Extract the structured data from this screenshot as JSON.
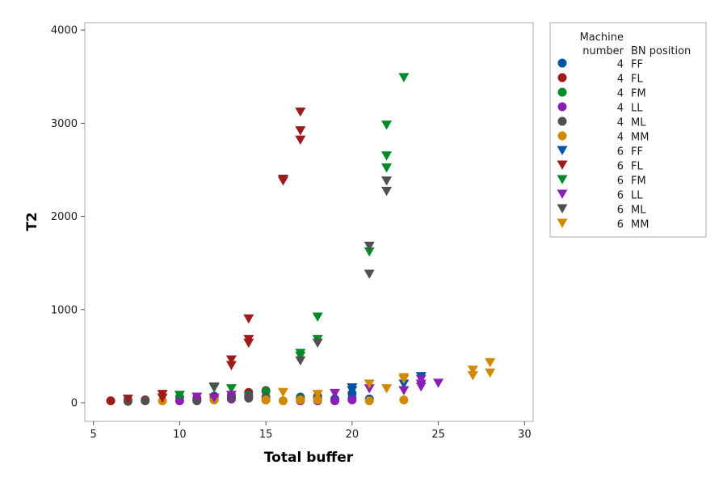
{
  "chart_data": {
    "type": "scatter",
    "xlabel": "Total buffer",
    "ylabel": "T2",
    "xlim": [
      4.5,
      30.5
    ],
    "ylim": [
      -200,
      4080
    ],
    "xticks": [
      5,
      10,
      15,
      20,
      25,
      30
    ],
    "yticks": [
      0,
      1000,
      2000,
      3000,
      4000
    ],
    "grid": false,
    "legend_position": "right",
    "legend_headers": {
      "col1": "Machine",
      "col1b": "number",
      "col2": "BN position"
    },
    "series": [
      {
        "machine": "4",
        "position": "FF",
        "color": "#0054A6",
        "marker": "circle",
        "points": [
          [
            12,
            70
          ],
          [
            13,
            50
          ],
          [
            17,
            60
          ],
          [
            18,
            50
          ],
          [
            19,
            40
          ],
          [
            20,
            50
          ],
          [
            20,
            100
          ],
          [
            21,
            40
          ]
        ]
      },
      {
        "machine": "4",
        "position": "FL",
        "color": "#9E1B1B",
        "marker": "circle",
        "points": [
          [
            6,
            20
          ],
          [
            7,
            30
          ],
          [
            8,
            30
          ],
          [
            11,
            50
          ],
          [
            12,
            60
          ],
          [
            13,
            80
          ],
          [
            14,
            110
          ],
          [
            15,
            130
          ]
        ]
      },
      {
        "machine": "4",
        "position": "FM",
        "color": "#008A29",
        "marker": "circle",
        "points": [
          [
            10,
            60
          ],
          [
            11,
            30
          ],
          [
            12,
            40
          ],
          [
            13,
            60
          ],
          [
            14,
            80
          ],
          [
            15,
            120
          ],
          [
            17,
            50
          ],
          [
            18,
            60
          ]
        ]
      },
      {
        "machine": "4",
        "position": "LL",
        "color": "#8B1FB5",
        "marker": "circle",
        "points": [
          [
            10,
            20
          ],
          [
            11,
            30
          ],
          [
            12,
            30
          ],
          [
            13,
            40
          ],
          [
            14,
            60
          ],
          [
            15,
            30
          ],
          [
            17,
            20
          ],
          [
            18,
            20
          ],
          [
            19,
            20
          ],
          [
            20,
            30
          ]
        ]
      },
      {
        "machine": "4",
        "position": "ML",
        "color": "#505050",
        "marker": "circle",
        "points": [
          [
            7,
            15
          ],
          [
            8,
            20
          ],
          [
            11,
            20
          ],
          [
            12,
            40
          ],
          [
            13,
            60
          ],
          [
            14,
            50
          ],
          [
            15,
            60
          ],
          [
            17,
            40
          ],
          [
            18,
            70
          ]
        ]
      },
      {
        "machine": "4",
        "position": "MM",
        "color": "#D08A00",
        "marker": "circle",
        "points": [
          [
            9,
            20
          ],
          [
            12,
            30
          ],
          [
            15,
            30
          ],
          [
            16,
            20
          ],
          [
            17,
            30
          ],
          [
            18,
            30
          ],
          [
            21,
            20
          ],
          [
            23,
            30
          ]
        ]
      },
      {
        "machine": "6",
        "position": "FF",
        "color": "#0054A6",
        "marker": "triangle-down",
        "points": [
          [
            20,
            160
          ],
          [
            20,
            130
          ],
          [
            23,
            200
          ],
          [
            24,
            280
          ]
        ]
      },
      {
        "machine": "6",
        "position": "FL",
        "color": "#9E1B1B",
        "marker": "triangle-down",
        "points": [
          [
            7,
            40
          ],
          [
            9,
            90
          ],
          [
            9,
            50
          ],
          [
            13,
            460
          ],
          [
            13,
            400
          ],
          [
            14,
            900
          ],
          [
            14,
            680
          ],
          [
            14,
            640
          ],
          [
            16,
            2400
          ],
          [
            16,
            2380
          ],
          [
            17,
            3120
          ],
          [
            17,
            2920
          ],
          [
            17,
            2820
          ]
        ]
      },
      {
        "machine": "6",
        "position": "FM",
        "color": "#008A29",
        "marker": "triangle-down",
        "points": [
          [
            10,
            80
          ],
          [
            12,
            160
          ],
          [
            13,
            150
          ],
          [
            17,
            530
          ],
          [
            17,
            500
          ],
          [
            18,
            920
          ],
          [
            18,
            680
          ],
          [
            21,
            1620
          ],
          [
            22,
            2980
          ],
          [
            22,
            2650
          ],
          [
            22,
            2520
          ],
          [
            23,
            3490
          ]
        ]
      },
      {
        "machine": "6",
        "position": "LL",
        "color": "#8B1FB5",
        "marker": "triangle-down",
        "points": [
          [
            11,
            60
          ],
          [
            12,
            50
          ],
          [
            13,
            80
          ],
          [
            19,
            100
          ],
          [
            21,
            150
          ],
          [
            23,
            130
          ],
          [
            24,
            250
          ],
          [
            24,
            200
          ],
          [
            24,
            170
          ],
          [
            25,
            210
          ]
        ]
      },
      {
        "machine": "6",
        "position": "ML",
        "color": "#505050",
        "marker": "triangle-down",
        "points": [
          [
            12,
            170
          ],
          [
            17,
            450
          ],
          [
            18,
            640
          ],
          [
            21,
            1680
          ],
          [
            21,
            1380
          ],
          [
            22,
            2380
          ],
          [
            22,
            2270
          ]
        ]
      },
      {
        "machine": "6",
        "position": "MM",
        "color": "#D08A00",
        "marker": "triangle-down",
        "points": [
          [
            16,
            110
          ],
          [
            18,
            90
          ],
          [
            21,
            200
          ],
          [
            22,
            150
          ],
          [
            23,
            270
          ],
          [
            23,
            250
          ],
          [
            27,
            350
          ],
          [
            27,
            290
          ],
          [
            28,
            430
          ],
          [
            28,
            320
          ]
        ]
      }
    ]
  }
}
